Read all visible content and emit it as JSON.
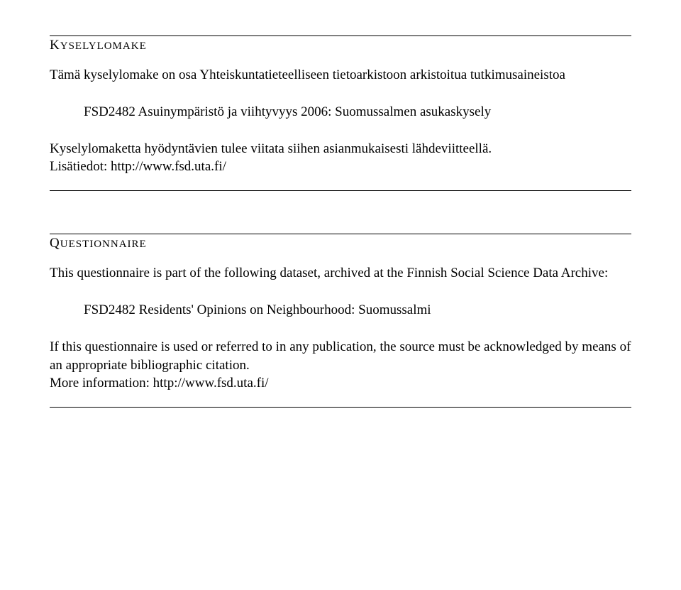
{
  "section1": {
    "heading_first": "K",
    "heading_rest": "YSELYLOMAKE",
    "intro": "Tämä kyselylomake on osa Yhteiskuntatieteelliseen tietoarkistoon arkistoitua tutkimusaineistoa",
    "dataset": "FSD2482 Asuinympäristö ja viihtyvyys 2006: Suomussalmen asukaskysely",
    "instruction": "Kyselylomaketta hyödyntävien tulee viitata siihen asianmukaisesti lähdeviitteellä.",
    "link": "Lisätiedot: http://www.fsd.uta.fi/"
  },
  "section2": {
    "heading_first": "Q",
    "heading_rest": "UESTIONNAIRE",
    "intro": "This questionnaire is part of the following dataset, archived at the Finnish Social Science Data Archive:",
    "dataset": "FSD2482 Residents' Opinions on Neighbourhood: Suomussalmi",
    "instruction": "If this questionnaire is used or referred to in any publication, the source must be acknowledged by means of an appropriate bibliographic citation.",
    "link": "More information: http://www.fsd.uta.fi/"
  }
}
